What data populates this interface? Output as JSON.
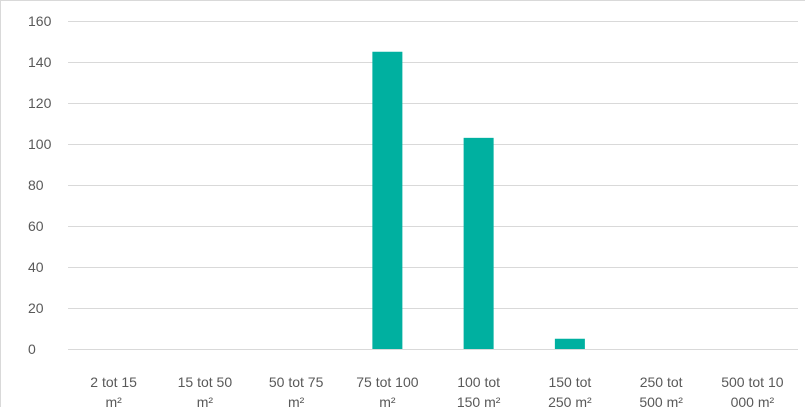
{
  "chart_data": {
    "type": "bar",
    "categories": [
      [
        "2 tot 15",
        "m²"
      ],
      [
        "15 tot 50",
        "m²"
      ],
      [
        "50 tot 75",
        "m²"
      ],
      [
        "75 tot 100",
        "m²"
      ],
      [
        "100 tot",
        "150 m²"
      ],
      [
        "150 tot",
        "250 m²"
      ],
      [
        "250 tot",
        "500 m²"
      ],
      [
        "500 tot 10",
        "000 m²"
      ]
    ],
    "values": [
      0,
      0,
      0,
      145,
      103,
      5,
      0,
      0
    ],
    "yticks": [
      0,
      20,
      40,
      60,
      80,
      100,
      120,
      140,
      160
    ],
    "ylim": [
      0,
      160
    ],
    "grid": true,
    "bar_color": "#00b0a0",
    "grid_color": "#d9d9d9",
    "text_color": "#595959"
  }
}
